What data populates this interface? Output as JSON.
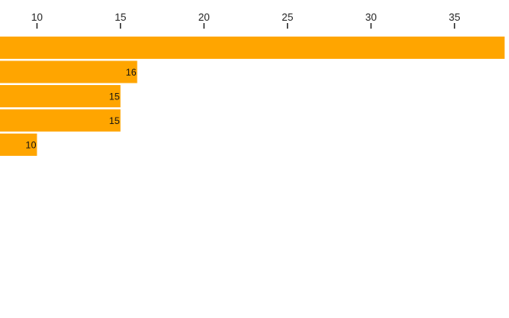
{
  "chart_data": {
    "type": "bar",
    "orientation": "horizontal",
    "title": "",
    "xlabel": "",
    "ylabel": "",
    "x_axis_position": "top",
    "grid": false,
    "legend": "none",
    "bar_color": "#FFA500",
    "x_ticks": [
      10,
      15,
      20,
      25,
      30,
      35
    ],
    "x_tick_labels": [
      "10",
      "15",
      "20",
      "25",
      "30",
      "35"
    ],
    "values": [
      38,
      16,
      15,
      15,
      10
    ],
    "data_labels": [
      "",
      "16",
      "15",
      "15",
      "10"
    ]
  }
}
